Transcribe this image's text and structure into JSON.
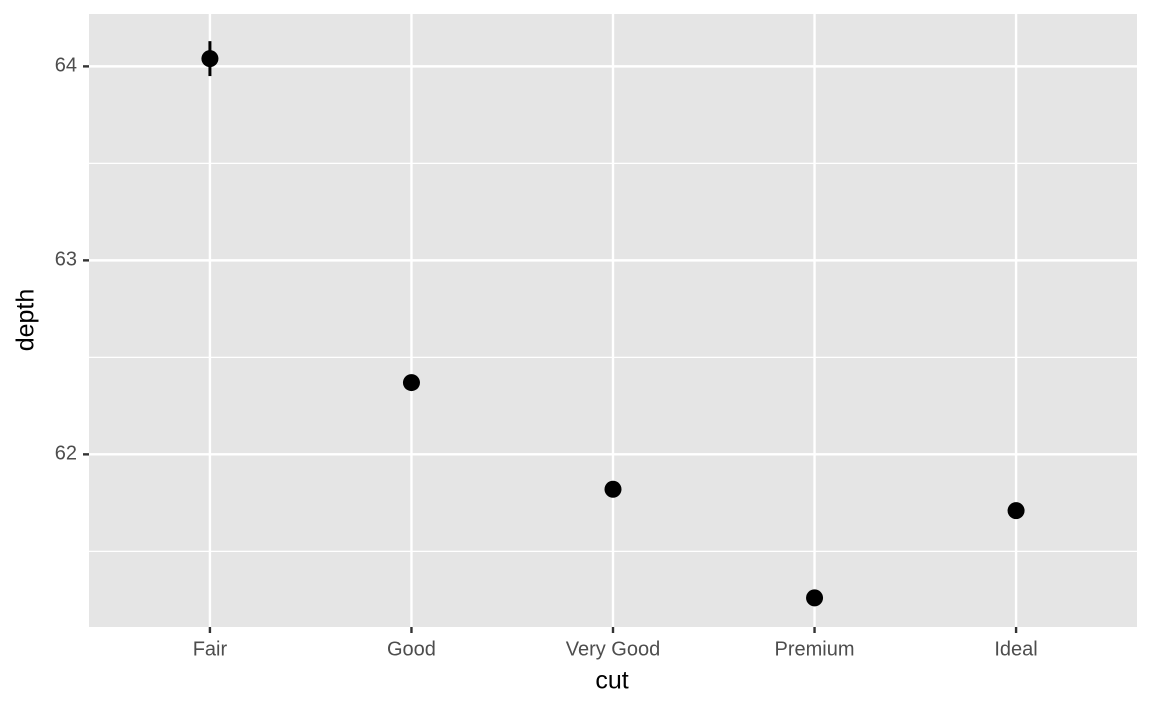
{
  "chart_data": {
    "type": "pointrange",
    "x_label": "cut",
    "y_label": "depth",
    "categories": [
      "Fair",
      "Good",
      "Very Good",
      "Premium",
      "Ideal"
    ],
    "values": [
      64.04,
      62.37,
      61.82,
      61.26,
      61.71
    ],
    "errors": [
      0.09,
      0.03,
      0.02,
      0.02,
      0.01
    ],
    "color": "#000000",
    "ylim": [
      61.11,
      64.27
    ],
    "yticks": [
      62,
      63,
      64
    ],
    "minor_yticks": [
      61.5,
      62.5,
      63.5
    ],
    "grid": true
  }
}
